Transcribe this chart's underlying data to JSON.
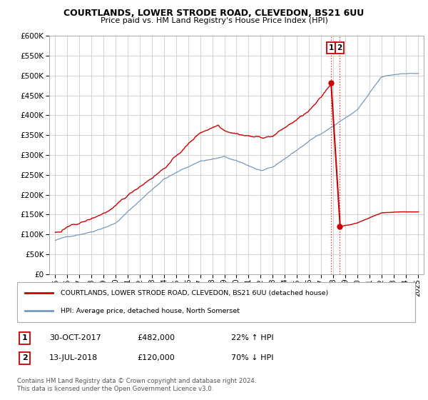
{
  "title1": "COURTLANDS, LOWER STRODE ROAD, CLEVEDON, BS21 6UU",
  "title2": "Price paid vs. HM Land Registry's House Price Index (HPI)",
  "legend_label1": "COURTLANDS, LOWER STRODE ROAD, CLEVEDON, BS21 6UU (detached house)",
  "legend_label2": "HPI: Average price, detached house, North Somerset",
  "annotation1_date": "30-OCT-2017",
  "annotation1_price": "£482,000",
  "annotation1_hpi": "22% ↑ HPI",
  "annotation2_date": "13-JUL-2018",
  "annotation2_price": "£120,000",
  "annotation2_hpi": "70% ↓ HPI",
  "footer": "Contains HM Land Registry data © Crown copyright and database right 2024.\nThis data is licensed under the Open Government Licence v3.0.",
  "line1_color": "#cc0000",
  "line2_color": "#7799bb",
  "vline_color": "#cc0000",
  "ylim": [
    0,
    600000
  ],
  "yticks": [
    0,
    50000,
    100000,
    150000,
    200000,
    250000,
    300000,
    350000,
    400000,
    450000,
    500000,
    550000,
    600000
  ],
  "grid_color": "#cccccc",
  "bg_color": "#ffffff",
  "sale1_year": 2017.83,
  "sale1_price": 482000,
  "sale2_year": 2018.54,
  "sale2_price": 120000
}
